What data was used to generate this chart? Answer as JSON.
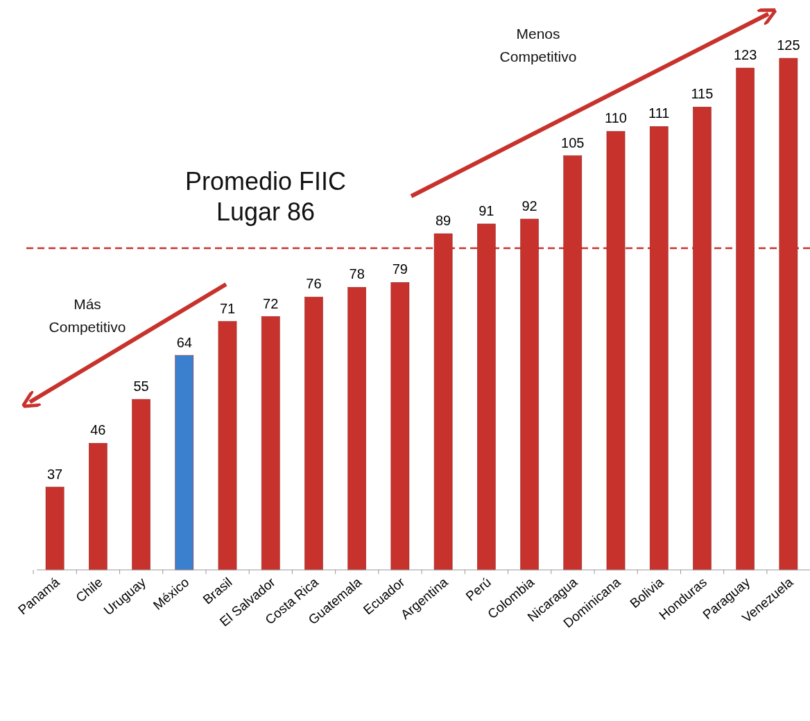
{
  "chart_data": {
    "type": "bar",
    "categories": [
      "Panamá",
      "Chile",
      "Uruguay",
      "México",
      "Brasil",
      "El Salvador",
      "Costa Rica",
      "Guatemala",
      "Ecuador",
      "Argentina",
      "Perú",
      "Colombia",
      "Nicaragua",
      "Dominicana",
      "Bolivia",
      "Honduras",
      "Paraguay",
      "Venezuela"
    ],
    "values": [
      37,
      46,
      55,
      64,
      71,
      72,
      76,
      78,
      79,
      89,
      91,
      92,
      105,
      110,
      111,
      115,
      123,
      125
    ],
    "colors": [
      "#c8322c",
      "#c8322c",
      "#c8322c",
      "#3b7fcf",
      "#c8322c",
      "#c8322c",
      "#c8322c",
      "#c8322c",
      "#c8322c",
      "#c8322c",
      "#c8322c",
      "#c8322c",
      "#c8322c",
      "#c8322c",
      "#c8322c",
      "#c8322c",
      "#c8322c",
      "#c8322c"
    ],
    "ylim": [
      20,
      125
    ],
    "data_labels": true,
    "ref_lines": [
      {
        "axis": "y",
        "value": 86,
        "label": "Promedio FIIC\nLugar 86",
        "color": "#c8322c",
        "line_style": "dashed"
      }
    ],
    "annotations": [
      "Menos\nCompetitivo",
      "Más\nCompetitivo"
    ]
  }
}
